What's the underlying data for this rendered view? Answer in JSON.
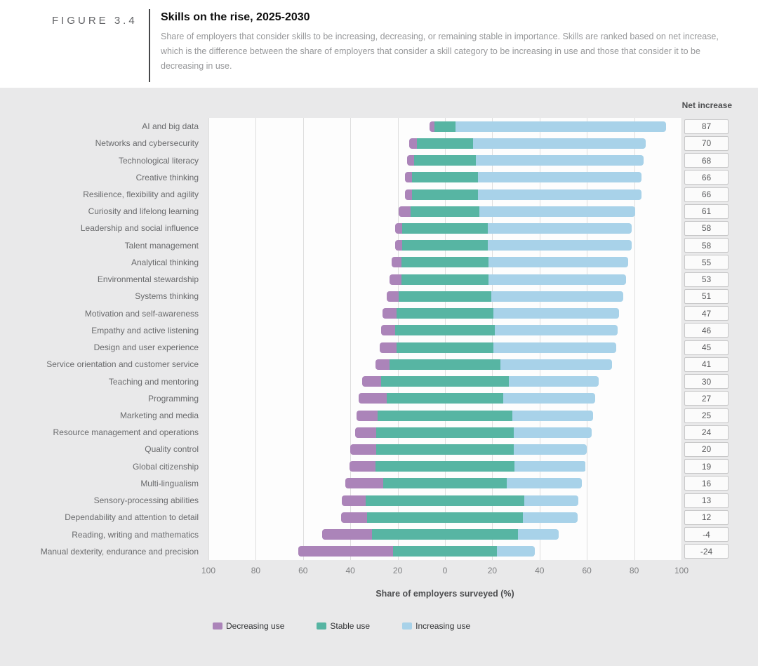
{
  "figure": {
    "label": "FIGURE 3.4",
    "title": "Skills on the rise, 2025-2030",
    "description": "Share of employers that consider skills to be increasing, decreasing, or remaining stable in importance. Skills are ranked based on net increase, which is the difference between the share of employers that consider a skill category to be increasing in use and those that consider it to be decreasing in use."
  },
  "chart_data": {
    "type": "bar",
    "variant": "horizontal-diverging-stacked",
    "title": "Skills on the rise, 2025-2030",
    "xlabel": "Share of employers surveyed (%)",
    "x_tick_labels": [
      "100",
      "80",
      "60",
      "40",
      "20",
      "0",
      "20",
      "40",
      "60",
      "80",
      "100"
    ],
    "axis_note": "Stable segment centered on zero; decreasing extends left; increasing extends right; values are % of employers surveyed",
    "net_column_header": "Net increase",
    "legend_position": "bottom",
    "grid": true,
    "categories": [
      "AI and big data",
      "Networks and cybersecurity",
      "Technological literacy",
      "Creative thinking",
      "Resilience, flexibility and agility",
      "Curiosity and lifelong learning",
      "Leadership and social influence",
      "Talent management",
      "Analytical thinking",
      "Environmental stewardship",
      "Systems thinking",
      "Motivation and self-awareness",
      "Empathy and active listening",
      "Design and user experience",
      "Service orientation and customer service",
      "Teaching and mentoring",
      "Programming",
      "Marketing and media",
      "Resource management and operations",
      "Quality control",
      "Global citizenship",
      "Multi-lingualism",
      "Sensory-processing abilities",
      "Dependability and attention to detail",
      "Reading, writing and mathematics",
      "Manual dexterity, endurance and precision"
    ],
    "series": [
      {
        "name": "Decreasing use",
        "color": "#ab84b9",
        "values": [
          2,
          3,
          3,
          3,
          3,
          5,
          3,
          3,
          4,
          5,
          5,
          6,
          6,
          7,
          6,
          8,
          12,
          9,
          9,
          11,
          11,
          16,
          10,
          11,
          21,
          40
        ]
      },
      {
        "name": "Stable use",
        "color": "#57b5a3",
        "values": [
          9,
          24,
          26,
          28,
          28,
          29,
          36,
          36,
          37,
          37,
          39,
          41,
          42,
          41,
          47,
          54,
          49,
          57,
          58,
          58,
          59,
          52,
          67,
          66,
          62,
          44
        ]
      },
      {
        "name": "Increasing use",
        "color": "#a8d2e9",
        "values": [
          89,
          73,
          71,
          69,
          69,
          66,
          61,
          61,
          59,
          58,
          56,
          53,
          52,
          52,
          47,
          38,
          39,
          34,
          33,
          31,
          30,
          32,
          23,
          23,
          17,
          16
        ]
      }
    ],
    "net_increase": [
      87,
      70,
      68,
      66,
      66,
      61,
      58,
      58,
      55,
      53,
      51,
      47,
      46,
      45,
      41,
      30,
      27,
      25,
      24,
      20,
      19,
      16,
      13,
      12,
      -4,
      -24
    ]
  }
}
